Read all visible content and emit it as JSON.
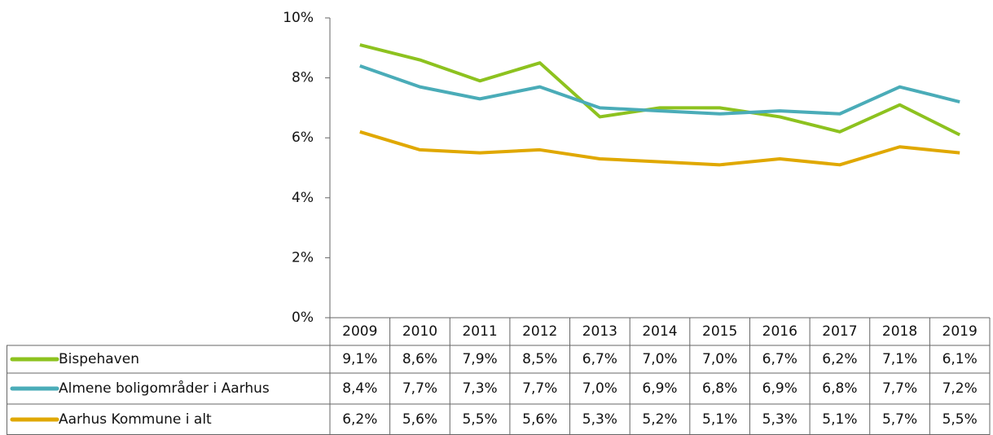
{
  "chart_data": {
    "type": "line",
    "categories": [
      "2009",
      "2010",
      "2011",
      "2012",
      "2013",
      "2014",
      "2015",
      "2016",
      "2017",
      "2018",
      "2019"
    ],
    "series": [
      {
        "name": "Bispehaven",
        "color": "#8dc21f",
        "values": [
          9.1,
          8.6,
          7.9,
          8.5,
          6.7,
          7.0,
          7.0,
          6.7,
          6.2,
          7.1,
          6.1
        ],
        "value_labels": [
          "9,1%",
          "8,6%",
          "7,9%",
          "8,5%",
          "6,7%",
          "7,0%",
          "7,0%",
          "6,7%",
          "6,2%",
          "7,1%",
          "6,1%"
        ]
      },
      {
        "name": "Almene boligområder i Aarhus",
        "color": "#4aacb8",
        "values": [
          8.4,
          7.7,
          7.3,
          7.7,
          7.0,
          6.9,
          6.8,
          6.9,
          6.8,
          7.7,
          7.2
        ],
        "value_labels": [
          "8,4%",
          "7,7%",
          "7,3%",
          "7,7%",
          "7,0%",
          "6,9%",
          "6,8%",
          "6,9%",
          "6,8%",
          "7,7%",
          "7,2%"
        ]
      },
      {
        "name": "Aarhus Kommune i alt",
        "color": "#e0a800",
        "values": [
          6.2,
          5.6,
          5.5,
          5.6,
          5.3,
          5.2,
          5.1,
          5.3,
          5.1,
          5.7,
          5.5
        ],
        "value_labels": [
          "6,2%",
          "5,6%",
          "5,5%",
          "5,6%",
          "5,3%",
          "5,2%",
          "5,1%",
          "5,3%",
          "5,1%",
          "5,7%",
          "5,5%"
        ]
      }
    ],
    "ylim": [
      0,
      10
    ],
    "yticks": [
      {
        "value": 0,
        "label": "0%"
      },
      {
        "value": 2,
        "label": "2%"
      },
      {
        "value": 4,
        "label": "4%"
      },
      {
        "value": 6,
        "label": "6%"
      },
      {
        "value": 8,
        "label": "8%"
      },
      {
        "value": 10,
        "label": "10%"
      }
    ]
  }
}
